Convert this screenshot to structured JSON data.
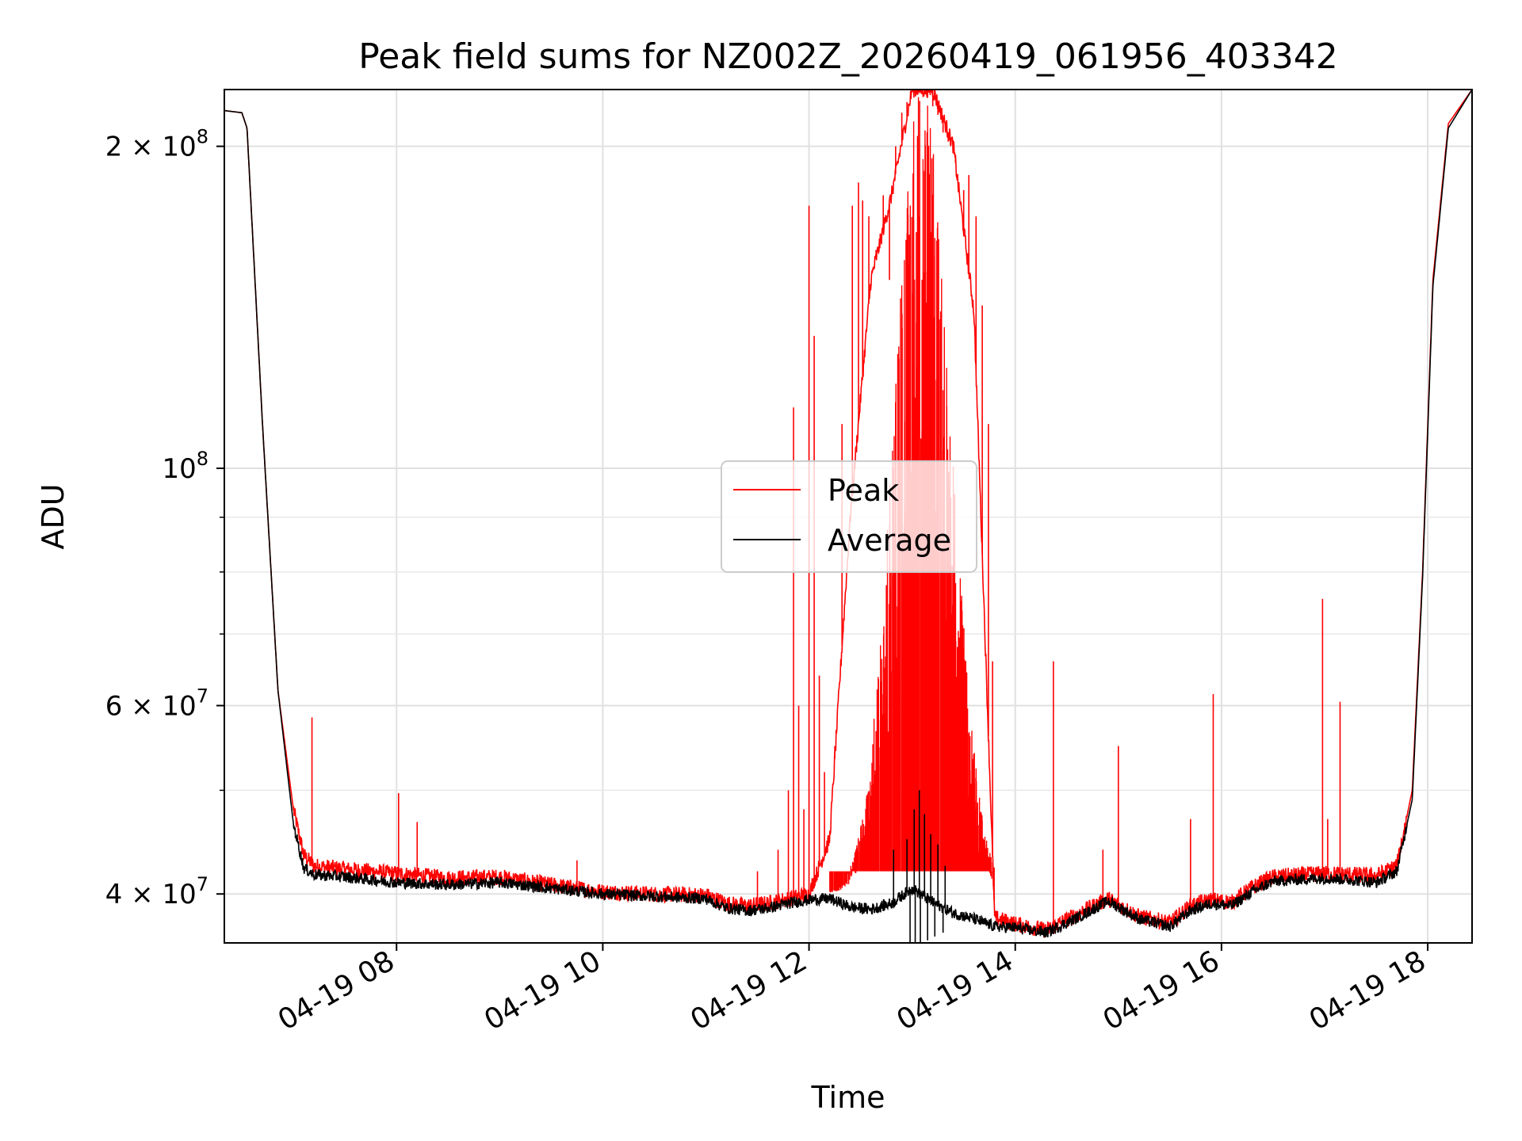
{
  "chart_data": {
    "type": "line",
    "title": "Peak field sums for NZ002Z_20260419_061956_403342",
    "xlabel": "Time",
    "ylabel": "ADU",
    "yscale": "log",
    "grid": true,
    "legend_position": "center",
    "xlim": [
      6.33,
      18.43
    ],
    "ylim": [
      36000000,
      226000000
    ],
    "x_ticks": [
      8,
      10,
      12,
      14,
      16,
      18
    ],
    "x_tick_labels": [
      "04-19 08",
      "04-19 10",
      "04-19 12",
      "04-19 14",
      "04-19 16",
      "04-19 18"
    ],
    "y_major_ticks": [
      {
        "value": 200000000,
        "mantissa": "2",
        "exponent": "8"
      },
      {
        "value": 100000000,
        "mantissa": "",
        "exponent": "8"
      },
      {
        "value": 60000000,
        "mantissa": "6",
        "exponent": "7"
      },
      {
        "value": 40000000,
        "mantissa": "4",
        "exponent": "7"
      }
    ],
    "y_minor_ticks": [
      50000000,
      70000000,
      80000000,
      90000000
    ],
    "series": [
      {
        "name": "Peak",
        "color": "#ff0000",
        "x": [
          6.33,
          6.5,
          6.55,
          6.7,
          6.85,
          7.0,
          7.1,
          7.2,
          7.5,
          8.0,
          8.5,
          9.0,
          9.5,
          10.0,
          10.5,
          11.0,
          11.2,
          11.4,
          11.6,
          11.8,
          12.0,
          12.2,
          12.4,
          12.6,
          12.8,
          13.0,
          13.2,
          13.4,
          13.6,
          13.8,
          14.0,
          14.3,
          14.6,
          14.9,
          15.2,
          15.5,
          15.7,
          15.9,
          16.1,
          16.3,
          16.5,
          16.8,
          17.0,
          17.3,
          17.5,
          17.7,
          17.85,
          17.95,
          18.05,
          18.2,
          18.43
        ],
        "y": [
          216000000,
          215000000,
          208000000,
          110000000,
          62000000,
          48000000,
          43500000,
          42500000,
          42200000,
          41800000,
          41400000,
          41500000,
          40800000,
          40200000,
          40000000,
          39900000,
          39200000,
          39000000,
          39200000,
          39600000,
          40000000,
          45000000,
          90000000,
          150000000,
          180000000,
          226000000,
          226000000,
          200000000,
          140000000,
          38000000,
          37500000,
          37000000,
          38300000,
          39600000,
          38100000,
          37600000,
          39000000,
          39500000,
          39300000,
          40600000,
          41500000,
          41700000,
          41800000,
          41700000,
          41600000,
          42500000,
          50000000,
          80000000,
          150000000,
          210000000,
          226000000
        ],
        "spikes": [
          {
            "x": 7.18,
            "y": 58500000
          },
          {
            "x": 8.02,
            "y": 49700000
          },
          {
            "x": 8.2,
            "y": 46700000
          },
          {
            "x": 9.75,
            "y": 43000000
          },
          {
            "x": 11.5,
            "y": 42000000
          },
          {
            "x": 11.7,
            "y": 44000000
          },
          {
            "x": 11.8,
            "y": 50000000
          },
          {
            "x": 11.85,
            "y": 114000000
          },
          {
            "x": 11.9,
            "y": 60000000
          },
          {
            "x": 11.95,
            "y": 48000000
          },
          {
            "x": 12.0,
            "y": 176000000
          },
          {
            "x": 12.05,
            "y": 133000000
          },
          {
            "x": 12.1,
            "y": 64000000
          },
          {
            "x": 12.15,
            "y": 52000000
          },
          {
            "x": 12.25,
            "y": 55000000
          },
          {
            "x": 12.32,
            "y": 110000000
          },
          {
            "x": 12.42,
            "y": 176000000
          },
          {
            "x": 12.48,
            "y": 185000000
          },
          {
            "x": 12.52,
            "y": 178000000
          },
          {
            "x": 12.58,
            "y": 172000000
          },
          {
            "x": 12.65,
            "y": 160000000
          },
          {
            "x": 12.72,
            "y": 180000000
          },
          {
            "x": 12.78,
            "y": 150000000
          },
          {
            "x": 12.84,
            "y": 200000000
          },
          {
            "x": 12.9,
            "y": 215000000
          },
          {
            "x": 12.95,
            "y": 220000000
          },
          {
            "x": 13.0,
            "y": 226000000
          },
          {
            "x": 13.05,
            "y": 224000000
          },
          {
            "x": 13.1,
            "y": 226000000
          },
          {
            "x": 13.15,
            "y": 222000000
          },
          {
            "x": 13.2,
            "y": 218000000
          },
          {
            "x": 13.25,
            "y": 214000000
          },
          {
            "x": 13.3,
            "y": 206000000
          },
          {
            "x": 13.35,
            "y": 202000000
          },
          {
            "x": 13.42,
            "y": 196000000
          },
          {
            "x": 13.5,
            "y": 182000000
          },
          {
            "x": 13.55,
            "y": 188000000
          },
          {
            "x": 13.62,
            "y": 172000000
          },
          {
            "x": 13.68,
            "y": 142000000
          },
          {
            "x": 13.74,
            "y": 110000000
          },
          {
            "x": 13.78,
            "y": 66000000
          },
          {
            "x": 14.37,
            "y": 66000000
          },
          {
            "x": 14.85,
            "y": 44000000
          },
          {
            "x": 15.0,
            "y": 55000000
          },
          {
            "x": 15.7,
            "y": 47000000
          },
          {
            "x": 15.92,
            "y": 61500000
          },
          {
            "x": 16.98,
            "y": 75500000
          },
          {
            "x": 17.03,
            "y": 47000000
          },
          {
            "x": 17.15,
            "y": 60500000
          }
        ]
      },
      {
        "name": "Average",
        "color": "#000000",
        "x": [
          6.33,
          6.5,
          6.55,
          6.7,
          6.85,
          7.0,
          7.1,
          7.2,
          7.5,
          8.0,
          8.5,
          9.0,
          9.5,
          10.0,
          10.5,
          11.0,
          11.2,
          11.4,
          11.6,
          11.8,
          12.0,
          12.2,
          12.4,
          12.6,
          12.8,
          13.0,
          13.2,
          13.4,
          13.6,
          13.8,
          14.0,
          14.3,
          14.6,
          14.9,
          15.2,
          15.5,
          15.7,
          15.9,
          16.1,
          16.3,
          16.5,
          16.8,
          17.0,
          17.3,
          17.5,
          17.7,
          17.85,
          17.95,
          18.05,
          18.2,
          18.43
        ],
        "y": [
          216000000,
          215000000,
          208000000,
          110000000,
          62000000,
          46500000,
          42300000,
          41700000,
          41500000,
          41000000,
          40800000,
          41000000,
          40500000,
          40000000,
          39800000,
          39600000,
          38800000,
          38600000,
          38800000,
          39200000,
          39500000,
          39600000,
          38900000,
          38700000,
          39200000,
          40500000,
          39300000,
          38400000,
          37900000,
          37300000,
          37200000,
          36800000,
          38000000,
          39400000,
          37900000,
          37300000,
          38600000,
          39200000,
          39000000,
          40200000,
          41100000,
          41300000,
          41400000,
          41200000,
          41000000,
          42000000,
          49000000,
          79000000,
          148000000,
          208000000,
          226000000
        ],
        "spikes": [
          {
            "x": 12.82,
            "y": 44000000
          },
          {
            "x": 12.95,
            "y": 45000000
          },
          {
            "x": 13.02,
            "y": 48000000
          },
          {
            "x": 13.07,
            "y": 50000000
          },
          {
            "x": 13.12,
            "y": 47500000
          },
          {
            "x": 13.18,
            "y": 45500000
          },
          {
            "x": 13.25,
            "y": 44500000
          },
          {
            "x": 13.32,
            "y": 42500000
          }
        ],
        "dips": [
          {
            "x": 12.98,
            "y": 35500000
          },
          {
            "x": 13.03,
            "y": 36000000
          },
          {
            "x": 13.08,
            "y": 35800000
          },
          {
            "x": 13.15,
            "y": 36200000
          },
          {
            "x": 13.22,
            "y": 36500000
          },
          {
            "x": 13.3,
            "y": 36800000
          }
        ]
      }
    ]
  }
}
